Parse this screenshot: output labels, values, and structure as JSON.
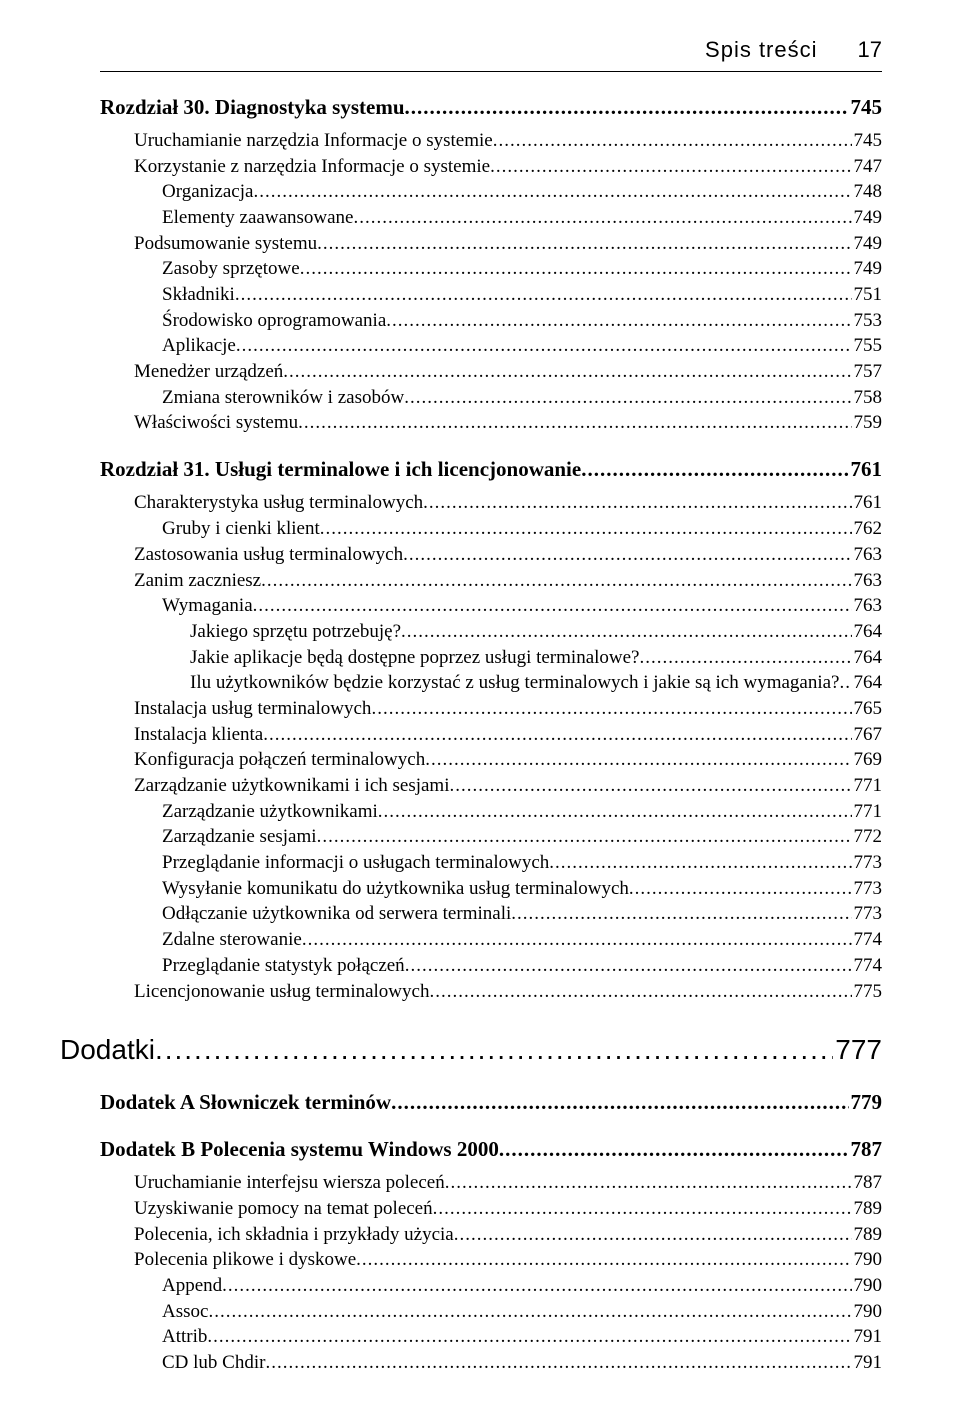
{
  "header": {
    "title": "Spis treści",
    "page_number": "17"
  },
  "chapters": [
    {
      "type": "chapter",
      "label": "Rozdział 30. Diagnostyka systemu",
      "page": "745",
      "items": [
        {
          "lvl": 1,
          "label": "Uruchamianie narzędzia Informacje o systemie",
          "page": "745"
        },
        {
          "lvl": 1,
          "label": "Korzystanie z narzędzia Informacje o systemie",
          "page": "747"
        },
        {
          "lvl": 2,
          "label": "Organizacja",
          "page": "748"
        },
        {
          "lvl": 2,
          "label": "Elementy zaawansowane",
          "page": "749"
        },
        {
          "lvl": 1,
          "label": "Podsumowanie systemu",
          "page": "749"
        },
        {
          "lvl": 2,
          "label": "Zasoby sprzętowe",
          "page": "749"
        },
        {
          "lvl": 2,
          "label": "Składniki",
          "page": "751"
        },
        {
          "lvl": 2,
          "label": "Środowisko oprogramowania",
          "page": "753"
        },
        {
          "lvl": 2,
          "label": "Aplikacje",
          "page": "755"
        },
        {
          "lvl": 1,
          "label": "Menedżer urządzeń",
          "page": "757"
        },
        {
          "lvl": 2,
          "label": "Zmiana sterowników i zasobów",
          "page": "758"
        },
        {
          "lvl": 1,
          "label": "Właściwości systemu",
          "page": "759"
        }
      ]
    },
    {
      "type": "chapter",
      "label": "Rozdział 31. Usługi terminalowe i ich licencjonowanie",
      "page": "761",
      "items": [
        {
          "lvl": 1,
          "label": "Charakterystyka usług terminalowych",
          "page": "761"
        },
        {
          "lvl": 2,
          "label": "Gruby i cienki klient",
          "page": "762"
        },
        {
          "lvl": 1,
          "label": "Zastosowania usług terminalowych",
          "page": "763"
        },
        {
          "lvl": 1,
          "label": "Zanim zaczniesz",
          "page": "763"
        },
        {
          "lvl": 2,
          "label": "Wymagania",
          "page": "763"
        },
        {
          "lvl": 3,
          "label": "Jakiego sprzętu potrzebuję?",
          "page": "764"
        },
        {
          "lvl": 3,
          "label": "Jakie aplikacje będą dostępne poprzez usługi terminalowe?",
          "page": "764"
        },
        {
          "lvl": 3,
          "label": "Ilu użytkowników będzie korzystać z usług terminalowych i jakie są ich wymagania?",
          "page": "764"
        },
        {
          "lvl": 1,
          "label": "Instalacja usług terminalowych",
          "page": "765"
        },
        {
          "lvl": 1,
          "label": "Instalacja klienta",
          "page": "767"
        },
        {
          "lvl": 1,
          "label": "Konfiguracja połączeń terminalowych",
          "page": "769"
        },
        {
          "lvl": 1,
          "label": "Zarządzanie użytkownikami i ich sesjami",
          "page": "771"
        },
        {
          "lvl": 2,
          "label": "Zarządzanie użytkownikami",
          "page": "771"
        },
        {
          "lvl": 2,
          "label": "Zarządzanie sesjami",
          "page": "772"
        },
        {
          "lvl": 2,
          "label": "Przeglądanie informacji o usługach terminalowych",
          "page": "773"
        },
        {
          "lvl": 2,
          "label": "Wysyłanie komunikatu do użytkownika usług terminalowych",
          "page": "773"
        },
        {
          "lvl": 2,
          "label": "Odłączanie użytkownika od serwera terminali",
          "page": "773"
        },
        {
          "lvl": 2,
          "label": "Zdalne sterowanie",
          "page": "774"
        },
        {
          "lvl": 2,
          "label": "Przeglądanie statystyk połączeń",
          "page": "774"
        },
        {
          "lvl": 1,
          "label": "Licencjonowanie usług terminalowych",
          "page": "775"
        }
      ]
    },
    {
      "type": "part",
      "label": "Dodatki",
      "page": "777",
      "items": []
    },
    {
      "type": "chapter",
      "label": "Dodatek A Słowniczek terminów",
      "page": "779",
      "items": []
    },
    {
      "type": "chapter",
      "label": "Dodatek B Polecenia systemu Windows 2000",
      "page": "787",
      "items": [
        {
          "lvl": 1,
          "label": "Uruchamianie interfejsu wiersza poleceń",
          "page": "787"
        },
        {
          "lvl": 1,
          "label": "Uzyskiwanie pomocy na temat poleceń",
          "page": "789"
        },
        {
          "lvl": 1,
          "label": "Polecenia, ich składnia i przykłady użycia",
          "page": "789"
        },
        {
          "lvl": 1,
          "label": "Polecenia plikowe i dyskowe",
          "page": "790"
        },
        {
          "lvl": 2,
          "label": "Append",
          "page": "790"
        },
        {
          "lvl": 2,
          "label": "Assoc",
          "page": "790"
        },
        {
          "lvl": 2,
          "label": "Attrib",
          "page": "791"
        },
        {
          "lvl": 2,
          "label": "CD lub Chdir",
          "page": "791"
        }
      ]
    }
  ]
}
